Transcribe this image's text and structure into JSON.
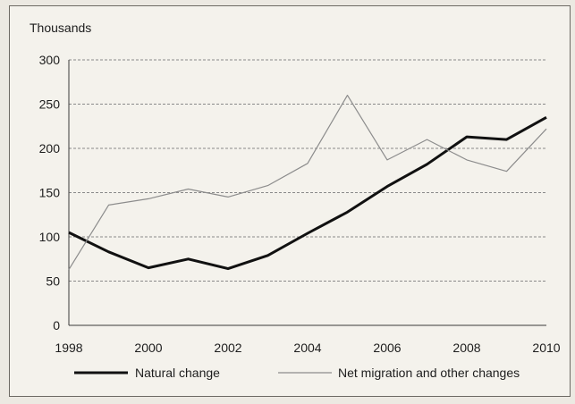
{
  "chart_data": {
    "type": "line",
    "ylabel": "Thousands",
    "ylim": [
      0,
      300
    ],
    "yticks": [
      0,
      50,
      100,
      150,
      200,
      250,
      300
    ],
    "xlim": [
      1998,
      2010
    ],
    "xticks": [
      "1998",
      "2000",
      "2002",
      "2004",
      "2006",
      "2008",
      "2010"
    ],
    "grid": "horizontal dashed",
    "legend_position": "bottom",
    "x": [
      1998,
      1999,
      2000,
      2001,
      2002,
      2003,
      2004,
      2005,
      2006,
      2007,
      2008,
      2009,
      2010
    ],
    "series": [
      {
        "name": "Natural change",
        "color": "#111111",
        "style": "thick",
        "values": [
          105,
          83,
          65,
          75,
          64,
          79,
          104,
          128,
          157,
          182,
          213,
          210,
          235
        ]
      },
      {
        "name": "Net migration and other changes",
        "color": "#8c8c8c",
        "style": "thin",
        "values": [
          63,
          136,
          143,
          154,
          145,
          158,
          183,
          260,
          187,
          210,
          187,
          174,
          222
        ]
      }
    ]
  }
}
